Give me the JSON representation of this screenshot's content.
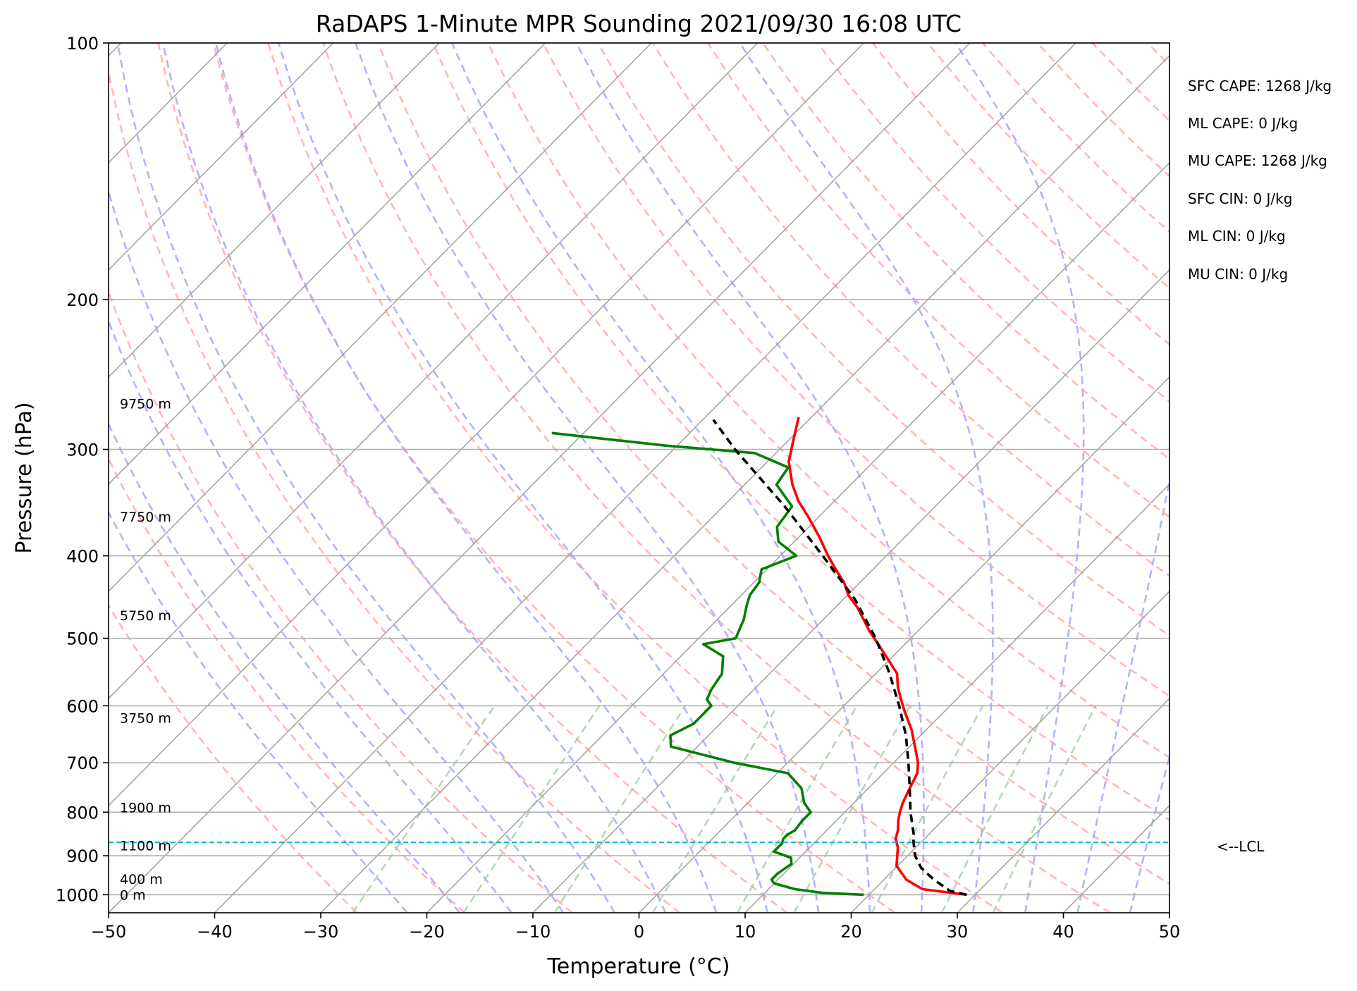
{
  "chart_data": {
    "type": "line",
    "title": "RaDAPS 1-Minute MPR Sounding 2021/09/30 16:08 UTC",
    "xlabel": "Temperature (°C)",
    "ylabel": "Pressure (hPa)",
    "xlim": [
      -50,
      50
    ],
    "ylim": [
      1050,
      100
    ],
    "y_scale": "log",
    "skew": true,
    "x_ticks": [
      -50,
      -40,
      -30,
      -20,
      -10,
      0,
      10,
      20,
      30,
      40,
      50
    ],
    "x_tick_labels": [
      "−50",
      "−40",
      "−30",
      "−20",
      "−10",
      "0",
      "10",
      "20",
      "30",
      "40",
      "50"
    ],
    "y_ticks": [
      100,
      200,
      300,
      400,
      500,
      600,
      700,
      800,
      900,
      1000
    ],
    "y_tick_labels": [
      "100",
      "200",
      "300",
      "400",
      "500",
      "600",
      "700",
      "800",
      "900",
      "1000"
    ],
    "grid": true,
    "series": [
      {
        "color": "#ff0000",
        "style": "solid",
        "points": [
          [
            1000,
            29.2
          ],
          [
            985,
            24.5
          ],
          [
            960,
            22.1
          ],
          [
            925,
            19.9
          ],
          [
            880,
            18.3
          ],
          [
            860,
            17.3
          ],
          [
            840,
            16.7
          ],
          [
            820,
            15.9
          ],
          [
            800,
            15.2
          ],
          [
            780,
            14.6
          ],
          [
            750,
            13.9
          ],
          [
            720,
            13.2
          ],
          [
            700,
            12.3
          ],
          [
            670,
            10.5
          ],
          [
            640,
            8.6
          ],
          [
            610,
            6.3
          ],
          [
            590,
            4.8
          ],
          [
            570,
            3.3
          ],
          [
            550,
            2.0
          ],
          [
            530,
            -0.1
          ],
          [
            510,
            -2.3
          ],
          [
            490,
            -4.6
          ],
          [
            460,
            -7.9
          ],
          [
            445,
            -9.9
          ],
          [
            430,
            -11.5
          ],
          [
            415,
            -13.5
          ],
          [
            400,
            -15.5
          ],
          [
            380,
            -18.1
          ],
          [
            360,
            -21.0
          ],
          [
            345,
            -23.4
          ],
          [
            330,
            -25.5
          ],
          [
            310,
            -28.0
          ],
          [
            290,
            -29.8
          ],
          [
            275,
            -31.2
          ]
        ]
      },
      {
        "color": "#008000",
        "style": "solid",
        "points": [
          [
            1000,
            19.5
          ],
          [
            995,
            15.5
          ],
          [
            985,
            12.5
          ],
          [
            970,
            10.0
          ],
          [
            960,
            9.4
          ],
          [
            945,
            9.4
          ],
          [
            920,
            9.8
          ],
          [
            905,
            9.2
          ],
          [
            890,
            7.0
          ],
          [
            870,
            7.0
          ],
          [
            860,
            6.7
          ],
          [
            850,
            6.7
          ],
          [
            840,
            7.0
          ],
          [
            820,
            6.8
          ],
          [
            800,
            6.8
          ],
          [
            780,
            5.3
          ],
          [
            750,
            3.7
          ],
          [
            720,
            1.0
          ],
          [
            700,
            -5.0
          ],
          [
            670,
            -12.5
          ],
          [
            650,
            -13.6
          ],
          [
            630,
            -12.5
          ],
          [
            600,
            -12.5
          ],
          [
            590,
            -13.5
          ],
          [
            575,
            -14.0
          ],
          [
            550,
            -14.5
          ],
          [
            525,
            -16.0
          ],
          [
            508,
            -19.0
          ],
          [
            500,
            -16.5
          ],
          [
            475,
            -17.5
          ],
          [
            458,
            -18.5
          ],
          [
            445,
            -19.2
          ],
          [
            430,
            -19.5
          ],
          [
            415,
            -20.5
          ],
          [
            400,
            -18.5
          ],
          [
            385,
            -21.5
          ],
          [
            370,
            -23.0
          ],
          [
            350,
            -23.5
          ],
          [
            330,
            -27.0
          ],
          [
            315,
            -27.5
          ],
          [
            303,
            -32.0
          ],
          [
            297,
            -41.0
          ],
          [
            292,
            -47.0
          ],
          [
            287,
            -53.0
          ]
        ]
      },
      {
        "color": "#000000",
        "style": "dashed",
        "points": [
          [
            1000,
            29.2
          ],
          [
            990,
            27.3
          ],
          [
            960,
            24.7
          ],
          [
            930,
            22.4
          ],
          [
            900,
            20.7
          ],
          [
            868,
            19.3
          ],
          [
            850,
            18.6
          ],
          [
            800,
            16.2
          ],
          [
            750,
            13.9
          ],
          [
            700,
            11.4
          ],
          [
            650,
            8.6
          ],
          [
            600,
            5.2
          ],
          [
            550,
            1.3
          ],
          [
            500,
            -3.3
          ],
          [
            450,
            -8.9
          ],
          [
            400,
            -16.0
          ],
          [
            350,
            -24.2
          ],
          [
            300,
            -34.2
          ],
          [
            277,
            -39.0
          ]
        ]
      }
    ],
    "height_labels": [
      {
        "p": 1000,
        "text": "0 m"
      },
      {
        "p": 958,
        "text": "400 m"
      },
      {
        "p": 875,
        "text": "1100 m"
      },
      {
        "p": 790,
        "text": "1900 m"
      },
      {
        "p": 620,
        "text": "3750 m"
      },
      {
        "p": 470,
        "text": "5750 m"
      },
      {
        "p": 360,
        "text": "7750 m"
      },
      {
        "p": 265,
        "text": "9750 m"
      }
    ],
    "lcl": {
      "p": 868,
      "label": "<--LCL",
      "color": "#00bfbf"
    },
    "reference_lines": {
      "isotherms_color": "#a0a0a0",
      "dry_adiabats_color": "#ffaaaa",
      "moist_adiabats_color": "#aaaaff",
      "mixing_ratio_color": "#99cc99"
    },
    "stats": [
      "SFC CAPE: 1268 J/kg",
      "ML CAPE: 0 J/kg",
      "MU CAPE: 1268 J/kg",
      "SFC CIN: 0 J/kg",
      "ML CIN: 0 J/kg",
      "MU CIN: 0 J/kg"
    ]
  }
}
